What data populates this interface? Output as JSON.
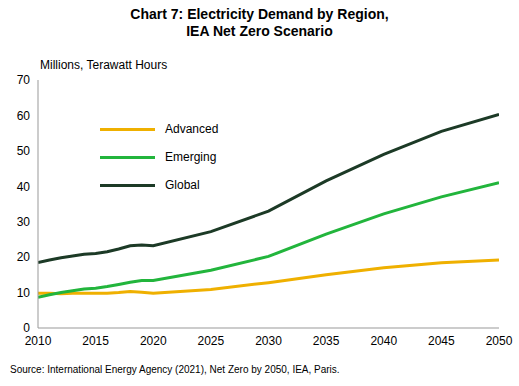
{
  "chart_data": {
    "type": "line",
    "title": "Chart 7: Electricity Demand by Region,\nIEA Net Zero Scenario",
    "y_label": "Millions, Terawatt Hours",
    "source": "Source: International Energy Agency (2021), Net Zero by 2050, IEA, Paris.",
    "x": [
      2010,
      2011,
      2012,
      2013,
      2014,
      2015,
      2016,
      2017,
      2018,
      2019,
      2020,
      2025,
      2030,
      2035,
      2040,
      2045,
      2050
    ],
    "series": [
      {
        "name": "Advanced",
        "color": "#efb000",
        "values": [
          9.8,
          9.8,
          9.7,
          9.8,
          9.8,
          9.8,
          9.8,
          10.0,
          10.3,
          10.1,
          9.8,
          10.9,
          12.8,
          15.0,
          17.0,
          18.4,
          19.2
        ]
      },
      {
        "name": "Emerging",
        "color": "#22b53c",
        "values": [
          8.7,
          9.4,
          10.0,
          10.5,
          11.0,
          11.2,
          11.7,
          12.3,
          12.9,
          13.4,
          13.4,
          16.3,
          20.2,
          26.5,
          32.2,
          37.0,
          41.0
        ]
      },
      {
        "name": "Global",
        "color": "#1c3a26",
        "values": [
          18.5,
          19.2,
          19.8,
          20.3,
          20.8,
          21.0,
          21.5,
          22.3,
          23.2,
          23.4,
          23.2,
          27.2,
          33.0,
          41.5,
          49.0,
          55.5,
          60.3
        ]
      }
    ],
    "xlim": [
      2010,
      2050
    ],
    "xticks": [
      2010,
      2015,
      2020,
      2025,
      2030,
      2035,
      2040,
      2045,
      2050
    ],
    "ylim": [
      0,
      70
    ],
    "yticks": [
      0,
      10,
      20,
      30,
      40,
      50,
      60,
      70
    ],
    "grid": false,
    "legend": "upper left"
  }
}
